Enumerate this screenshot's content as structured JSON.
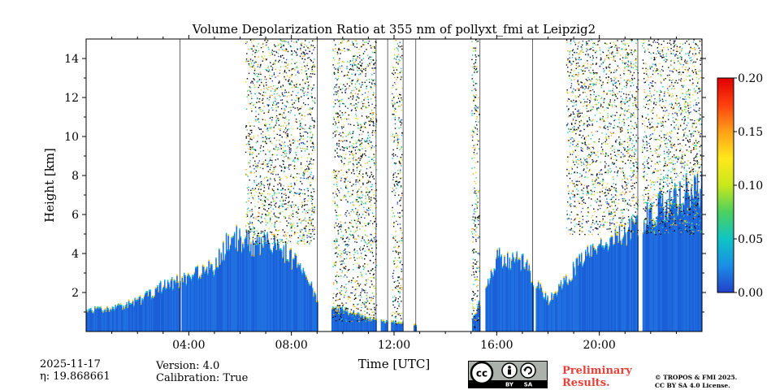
{
  "chart_data": {
    "type": "heatmap",
    "title": "Volume Depolarization Ratio at 355 nm of pollyxt_fmi at Leipzig2",
    "xlabel": "Time [UTC]",
    "ylabel": "Height [km]",
    "xlim_hours": [
      0,
      24
    ],
    "ylim_km": [
      0,
      15
    ],
    "x_ticks": [
      {
        "hour": 4,
        "label": "04:00"
      },
      {
        "hour": 8,
        "label": "08:00"
      },
      {
        "hour": 12,
        "label": "12:00"
      },
      {
        "hour": 16,
        "label": "16:00"
      },
      {
        "hour": 20,
        "label": "20:00"
      }
    ],
    "y_ticks": [
      {
        "km": 2,
        "label": "2"
      },
      {
        "km": 4,
        "label": "4"
      },
      {
        "km": 6,
        "label": "6"
      },
      {
        "km": 8,
        "label": "8"
      },
      {
        "km": 10,
        "label": "10"
      },
      {
        "km": 12,
        "label": "12"
      },
      {
        "km": 14,
        "label": "14"
      }
    ],
    "colorbar": {
      "range": [
        0.0,
        0.2
      ],
      "ticks": [
        {
          "value": 0.0,
          "label": "0.00"
        },
        {
          "value": 0.05,
          "label": "0.05"
        },
        {
          "value": 0.1,
          "label": "0.10"
        },
        {
          "value": 0.15,
          "label": "0.15"
        },
        {
          "value": 0.2,
          "label": "0.20"
        }
      ],
      "colormap": [
        "#2340c8",
        "#1a8ee6",
        "#10c4c4",
        "#4cd060",
        "#c8e81c",
        "#ffe81c",
        "#ffa018",
        "#ff4010",
        "#e00000"
      ]
    },
    "aerosol_layer_top_km": [
      {
        "hour": 0.0,
        "km": 1.0
      },
      {
        "hour": 1.2,
        "km": 1.2
      },
      {
        "hour": 2.0,
        "km": 1.5
      },
      {
        "hour": 3.0,
        "km": 2.3
      },
      {
        "hour": 4.0,
        "km": 2.8
      },
      {
        "hour": 5.0,
        "km": 3.3
      },
      {
        "hour": 5.6,
        "km": 4.8
      },
      {
        "hour": 6.5,
        "km": 4.5
      },
      {
        "hour": 7.5,
        "km": 4.3
      },
      {
        "hour": 8.5,
        "km": 3.0
      },
      {
        "hour": 9.0,
        "km": 1.5
      },
      {
        "hour": 11.0,
        "km": 0.6
      },
      {
        "hour": 12.8,
        "km": 0.3
      },
      {
        "hour": 15.0,
        "km": 0.4
      },
      {
        "hour": 16.0,
        "km": 3.8
      },
      {
        "hour": 17.0,
        "km": 3.5
      },
      {
        "hour": 18.0,
        "km": 1.5
      },
      {
        "hour": 19.0,
        "km": 3.2
      },
      {
        "hour": 20.0,
        "km": 4.5
      },
      {
        "hour": 21.0,
        "km": 5.0
      },
      {
        "hour": 22.0,
        "km": 6.0
      },
      {
        "hour": 23.0,
        "km": 6.8
      },
      {
        "hour": 24.0,
        "km": 7.5
      }
    ],
    "noise_regions": [
      {
        "start_hour": 6.2,
        "end_hour": 8.9,
        "bottom_km": 4.5,
        "top_km": 15.0
      },
      {
        "start_hour": 9.6,
        "end_hour": 11.3,
        "bottom_km": 0.5,
        "top_km": 15.0
      },
      {
        "start_hour": 11.9,
        "end_hour": 12.3,
        "bottom_km": 0.3,
        "top_km": 15.0
      },
      {
        "start_hour": 15.0,
        "end_hour": 15.3,
        "bottom_km": 0.0,
        "top_km": 15.0
      },
      {
        "start_hour": 18.7,
        "end_hour": 24.0,
        "bottom_km": 5.0,
        "top_km": 15.0
      }
    ],
    "gaps_hours": [
      {
        "start": 3.65,
        "end": 3.7
      },
      {
        "start": 9.0,
        "end": 9.55
      },
      {
        "start": 11.3,
        "end": 11.45
      },
      {
        "start": 11.75,
        "end": 11.85
      },
      {
        "start": 12.35,
        "end": 12.75
      },
      {
        "start": 12.85,
        "end": 15.0
      },
      {
        "start": 15.35,
        "end": 15.55
      },
      {
        "start": 17.4,
        "end": 17.5
      },
      {
        "start": 21.5,
        "end": 21.65
      }
    ]
  },
  "footer": {
    "date": "2025-11-17",
    "eta": "η: 19.868661",
    "version": "Version: 4.0",
    "calibration": "Calibration: True",
    "license_badge_text": "cc",
    "by_label": "BY",
    "sa_label": "SA",
    "preliminary": "Preliminary",
    "results": "Results.",
    "copyright_line1": "© TROPOS & FMI 2025.",
    "copyright_line2": "CC BY SA 4.0 License."
  }
}
